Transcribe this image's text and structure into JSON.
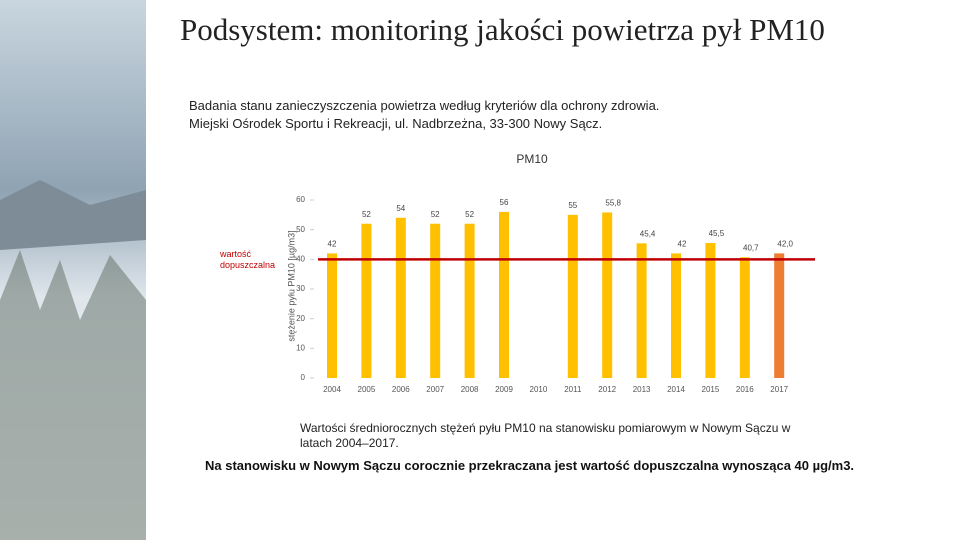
{
  "slide": {
    "title": "Podsystem: monitoring jakości powietrza   pył PM10",
    "subtitle": [
      "Badania stanu zanieczyszczenia powietrza według kryteriów dla ochrony zdrowia.",
      "Miejski Ośrodek Sportu i Rekreacji, ul. Nadbrzeżna, 33-300 Nowy Sącz."
    ],
    "caption": "Wartości średniorocznych stężeń pyłu PM10 na stanowisku pomiarowym w Nowym Sączu w latach 2004–2017.",
    "conclusion": "Na stanowisku w Nowym Sączu corocznie przekraczana jest wartość dopuszczalna wynosząca 40 µg/m3."
  },
  "chart_data": {
    "type": "bar",
    "title": "PM10",
    "y_label": "stężenie pyłu PM10 [µg/m3]",
    "categories": [
      "2004",
      "2005",
      "2006",
      "2007",
      "2008",
      "2009",
      "2010",
      "2011",
      "2012",
      "2013",
      "2014",
      "2015",
      "2016",
      "2017"
    ],
    "values": [
      42,
      52,
      54,
      52,
      52,
      56,
      null,
      55,
      55.8,
      45.4,
      42,
      45.5,
      40.7,
      42.0
    ],
    "value_labels": [
      "42",
      "52",
      "54",
      "52",
      "52",
      "56",
      null,
      "55",
      "55,8",
      "45,4",
      "42",
      "45,5",
      "40,7",
      "42,0"
    ],
    "colors": [
      "#ffc000",
      "#ffc000",
      "#ffc000",
      "#ffc000",
      "#ffc000",
      "#ffc000",
      "#ffc000",
      "#ffc000",
      "#ffc000",
      "#ffc000",
      "#ffc000",
      "#ffc000",
      "#ffc000",
      "#ed7d31"
    ],
    "ylim": [
      0,
      60
    ],
    "yticks": [
      0,
      10,
      20,
      30,
      40,
      50,
      60
    ],
    "grid": false,
    "threshold": {
      "value": 40,
      "label": "wartość dopuszczalna",
      "color": "#c00000"
    }
  }
}
